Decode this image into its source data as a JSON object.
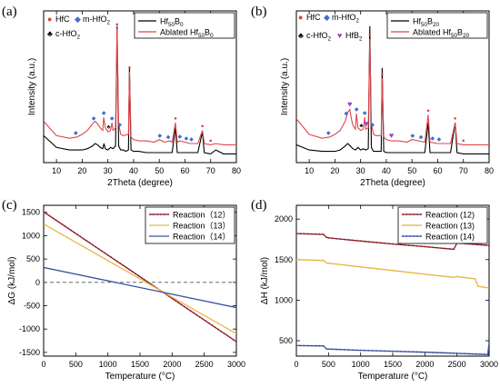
{
  "chart_data": [
    {
      "panel": "(a)",
      "type": "line",
      "xlabel": "2Theta (degree)",
      "ylabel": "Intensity (a.u.)",
      "xlim": [
        5,
        80
      ],
      "xticks": [
        10,
        20,
        30,
        40,
        50,
        60,
        70,
        80
      ],
      "yticks_shown": false,
      "legend": {
        "position": "top-right",
        "entries": [
          {
            "name": "Hf50B0",
            "base": "Hf",
            "sub1": "50",
            "mid": "B",
            "sub2": "0",
            "color": "#000000"
          },
          {
            "name": "Ablated Hf50B0",
            "base": "Ablated Hf",
            "sub1": "50",
            "mid": "B",
            "sub2": "0",
            "color": "#e0454a"
          }
        ]
      },
      "marker_legend": [
        {
          "symbol": "●",
          "color": "#d2452f",
          "base": "HfC",
          "sub": ""
        },
        {
          "symbol": "◆",
          "color": "#3e6fd0",
          "base": "m-HfO",
          "sub": "2"
        },
        {
          "symbol": "♣",
          "color": "#000000",
          "base": "c-HfO",
          "sub": "2"
        }
      ],
      "series": [
        {
          "name": "Hf50B0",
          "color": "#000000",
          "x": [
            5,
            10,
            15,
            20,
            22,
            24,
            25,
            26,
            27,
            28,
            28.5,
            29,
            30,
            31,
            32,
            33,
            33.6,
            34.2,
            35,
            36,
            37,
            38,
            38.4,
            39,
            40,
            42,
            45,
            50,
            55,
            56.3,
            57,
            60,
            65,
            66.8,
            67.5,
            70,
            72,
            75,
            80
          ],
          "y": [
            0.16,
            0.07,
            0.05,
            0.05,
            0.06,
            0.08,
            0.1,
            0.09,
            0.07,
            0.06,
            0.1,
            0.06,
            0.05,
            0.07,
            0.06,
            0.08,
            1.0,
            0.08,
            0.05,
            0.05,
            0.04,
            0.05,
            0.68,
            0.05,
            0.04,
            0.04,
            0.03,
            0.03,
            0.03,
            0.22,
            0.03,
            0.03,
            0.03,
            0.19,
            0.03,
            0.02,
            0.05,
            0.02,
            0.02
          ]
        },
        {
          "name": "Ablated Hf50B0",
          "color": "#e0454a",
          "x": [
            5,
            10,
            15,
            18,
            20,
            22,
            24,
            25,
            26,
            27,
            28,
            28.4,
            29,
            30,
            31,
            31.6,
            32,
            33,
            33.6,
            34.2,
            35,
            36,
            38,
            38.4,
            39,
            40,
            42,
            45,
            48,
            50,
            52,
            54,
            55,
            56.3,
            57,
            58,
            60,
            62,
            65,
            66.8,
            67.5,
            70,
            72,
            75,
            80
          ],
          "y": [
            0.27,
            0.16,
            0.14,
            0.15,
            0.17,
            0.2,
            0.25,
            0.27,
            0.25,
            0.22,
            0.2,
            0.3,
            0.22,
            0.19,
            0.2,
            0.26,
            0.2,
            0.22,
            0.98,
            0.25,
            0.17,
            0.16,
            0.17,
            0.65,
            0.15,
            0.13,
            0.12,
            0.12,
            0.11,
            0.13,
            0.11,
            0.12,
            0.11,
            0.26,
            0.11,
            0.12,
            0.11,
            0.1,
            0.1,
            0.2,
            0.1,
            0.09,
            0.1,
            0.09,
            0.09
          ]
        }
      ]
    },
    {
      "panel": "(b)",
      "type": "line",
      "xlabel": "2Theta (degree)",
      "ylabel": "Intensity (a.u.)",
      "xlim": [
        5,
        80
      ],
      "xticks": [
        10,
        20,
        30,
        40,
        50,
        60,
        70,
        80
      ],
      "yticks_shown": false,
      "legend": {
        "position": "top-right",
        "entries": [
          {
            "name": "Hf50B20",
            "base": "Hf",
            "sub1": "50",
            "mid": "B",
            "sub2": "20",
            "color": "#000000"
          },
          {
            "name": "Ablated Hf50B20",
            "base": "Ablated Hf",
            "sub1": "50",
            "mid": "B",
            "sub2": "20",
            "color": "#e0454a"
          }
        ]
      },
      "marker_legend": [
        {
          "symbol": "●",
          "color": "#d2452f",
          "base": "HfC",
          "sub": ""
        },
        {
          "symbol": "◆",
          "color": "#3e6fd0",
          "base": "m-HfO",
          "sub": "2"
        },
        {
          "symbol": "♣",
          "color": "#000000",
          "base": "c-HfO",
          "sub": "2"
        },
        {
          "symbol": "♥",
          "color": "#a040c8",
          "base": "HfB",
          "sub": "2"
        }
      ],
      "series": [
        {
          "name": "Hf50B20",
          "color": "#000000",
          "x": [
            5,
            10,
            15,
            20,
            22,
            24,
            25,
            26,
            27,
            28,
            29,
            30,
            31,
            32,
            33,
            33.6,
            34.2,
            35,
            36,
            38,
            38.4,
            39,
            40,
            42,
            45,
            50,
            55,
            56.3,
            57,
            60,
            65,
            66.8,
            67.5,
            70,
            75,
            80
          ],
          "y": [
            0.09,
            0.05,
            0.04,
            0.04,
            0.05,
            0.08,
            0.1,
            0.08,
            0.06,
            0.05,
            0.07,
            0.05,
            0.06,
            0.05,
            0.06,
            1.0,
            0.07,
            0.04,
            0.04,
            0.04,
            0.68,
            0.04,
            0.03,
            0.03,
            0.03,
            0.03,
            0.03,
            0.26,
            0.03,
            0.03,
            0.03,
            0.26,
            0.03,
            0.02,
            0.02,
            0.02
          ]
        },
        {
          "name": "Ablated Hf50B20",
          "color": "#e0454a",
          "x": [
            5,
            10,
            15,
            18,
            20,
            22,
            24,
            25,
            25.8,
            26.5,
            27,
            28,
            28.4,
            29,
            30,
            31,
            31.6,
            32,
            33,
            33.6,
            34.2,
            35,
            36,
            38,
            38.4,
            39,
            40,
            42,
            45,
            48,
            50,
            55,
            56.3,
            57,
            60,
            65,
            66.8,
            67.5,
            70,
            75,
            80
          ],
          "y": [
            0.29,
            0.17,
            0.14,
            0.15,
            0.17,
            0.2,
            0.27,
            0.34,
            0.36,
            0.28,
            0.24,
            0.21,
            0.33,
            0.22,
            0.2,
            0.21,
            0.3,
            0.21,
            0.22,
            0.9,
            0.25,
            0.17,
            0.16,
            0.16,
            0.6,
            0.15,
            0.13,
            0.12,
            0.12,
            0.11,
            0.13,
            0.11,
            0.32,
            0.11,
            0.1,
            0.1,
            0.26,
            0.1,
            0.09,
            0.09,
            0.09
          ]
        }
      ]
    },
    {
      "panel": "(c)",
      "type": "line",
      "xlabel": "Temperature (°C)",
      "ylabel": "ΔG (kJ/mol)",
      "xlim": [
        0,
        3000
      ],
      "ylim": [
        -1580,
        1650
      ],
      "xticks": [
        0,
        500,
        1000,
        1500,
        2000,
        2500,
        3000
      ],
      "yticks": [
        -1500,
        -1000,
        -500,
        0,
        500,
        1000,
        1500
      ],
      "zero_line": "dashed",
      "legend": {
        "position": "top-right"
      },
      "series": [
        {
          "name": "Reaction（12）",
          "color": "#8b1c2a",
          "marker": true,
          "x": [
            0,
            3000
          ],
          "y": [
            1510,
            -1270
          ]
        },
        {
          "name": "Reaction（13）",
          "color": "#e6b84a",
          "marker": false,
          "x": [
            0,
            3000
          ],
          "y": [
            1250,
            -1100
          ]
        },
        {
          "name": "Reaction（14）",
          "color": "#3b4fa0",
          "marker": false,
          "x": [
            0,
            3000
          ],
          "y": [
            320,
            -540
          ]
        }
      ]
    },
    {
      "panel": "(d)",
      "type": "line",
      "xlabel": "Temperature (°C)",
      "ylabel": "ΔH (kJ/mol)",
      "xlim": [
        0,
        3000
      ],
      "ylim": [
        310,
        2170
      ],
      "xticks": [
        0,
        500,
        1000,
        1500,
        2000,
        2500,
        3000
      ],
      "yticks": [
        500,
        1000,
        1500,
        2000
      ],
      "legend": {
        "position": "top-right"
      },
      "series": [
        {
          "name": "Reaction (12)",
          "color": "#8b1c2a",
          "marker": true,
          "x": [
            0,
            420,
            470,
            500,
            1000,
            1500,
            2000,
            2450,
            2500,
            3000
          ],
          "y": [
            1822,
            1812,
            1775,
            1768,
            1730,
            1693,
            1660,
            1628,
            1705,
            1675
          ]
        },
        {
          "name": "Reaction (13)",
          "color": "#e6b84a",
          "marker": true,
          "x": [
            0,
            420,
            470,
            500,
            1000,
            1500,
            2000,
            2450,
            2500,
            2780,
            2830,
            3000
          ],
          "y": [
            1500,
            1490,
            1460,
            1456,
            1410,
            1366,
            1320,
            1282,
            1290,
            1262,
            1170,
            1150
          ]
        },
        {
          "name": "Reaction (14)",
          "color": "#3b4fa0",
          "marker": true,
          "x": [
            0,
            420,
            470,
            500,
            1000,
            1500,
            2000,
            2450,
            2500,
            2980,
            3000
          ],
          "y": [
            440,
            436,
            400,
            397,
            382,
            370,
            358,
            346,
            344,
            330,
            470
          ]
        }
      ]
    }
  ]
}
